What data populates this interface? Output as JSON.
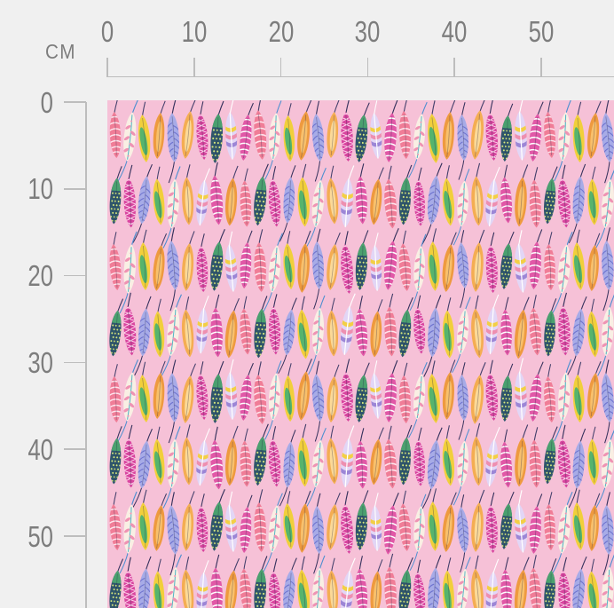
{
  "page": {
    "background": "#f0f0f0"
  },
  "ruler": {
    "unit_label": "CM",
    "horizontal_tick_labels": [
      "0",
      "10",
      "20",
      "30",
      "40",
      "50"
    ],
    "vertical_tick_labels": [
      "0",
      "10",
      "20",
      "30",
      "40",
      "50"
    ],
    "tick_interval_cm": 10,
    "text_color": "#7d7d7d",
    "line_color": "#bdbdbd"
  },
  "fabric": {
    "pattern_name": "watercolor-feathers",
    "background": "#f6c1d7",
    "feather_variants": [
      {
        "name": "coral-stripes",
        "body": "#f07d97",
        "accent": "#ffe4ec",
        "stem": "#44406b",
        "detail": "stripes"
      },
      {
        "name": "cream-floral",
        "body": "#f9efe4",
        "accent": "#ef93b4",
        "stem": "#4d8fd0",
        "detail": "floral",
        "tail": true
      },
      {
        "name": "yellow-leaf",
        "body": "#f1cf3b",
        "accent": "#56b46d",
        "stem": "#44406b",
        "detail": "leaf"
      },
      {
        "name": "orange-plume",
        "body": "#ee9a3f",
        "accent": "#f8c06c",
        "stem": "#44406b",
        "detail": "inner"
      },
      {
        "name": "periwinkle-barbs",
        "body": "#a7abe7",
        "accent": "#6f74cf",
        "stem": "#35315c",
        "detail": "barbs",
        "tail": true
      },
      {
        "name": "magenta-lattice",
        "body": "#d8459f",
        "accent": "#ffd9ee",
        "stem": "#35315c",
        "detail": "lattice"
      },
      {
        "name": "navy-dots",
        "body": "#2f566b",
        "accent": "#d3e57d",
        "stem": "#35315c",
        "detail": "dots",
        "cap": "#4ba06f"
      },
      {
        "name": "lavender-rainbow",
        "body": "#e2d6f6",
        "accent": [
          "#f3cf45",
          "#ee8fb0",
          "#9c86d6"
        ],
        "stem": "#ffffff",
        "detail": "bands"
      },
      {
        "name": "amber-plume",
        "body": "#f4ad52",
        "accent": "#fbd998",
        "stem": "#44406b",
        "detail": "inner"
      },
      {
        "name": "fuchsia-stripes",
        "body": "#e158a7",
        "accent": "#ffffff",
        "stem": "#35315c",
        "detail": "stripes"
      }
    ],
    "row_sequence_a": [
      0,
      1,
      2,
      3,
      4,
      8,
      5,
      6,
      7,
      9
    ],
    "row_sequence_b": [
      6,
      5,
      4,
      2,
      1,
      8,
      7,
      9,
      3,
      0
    ]
  }
}
